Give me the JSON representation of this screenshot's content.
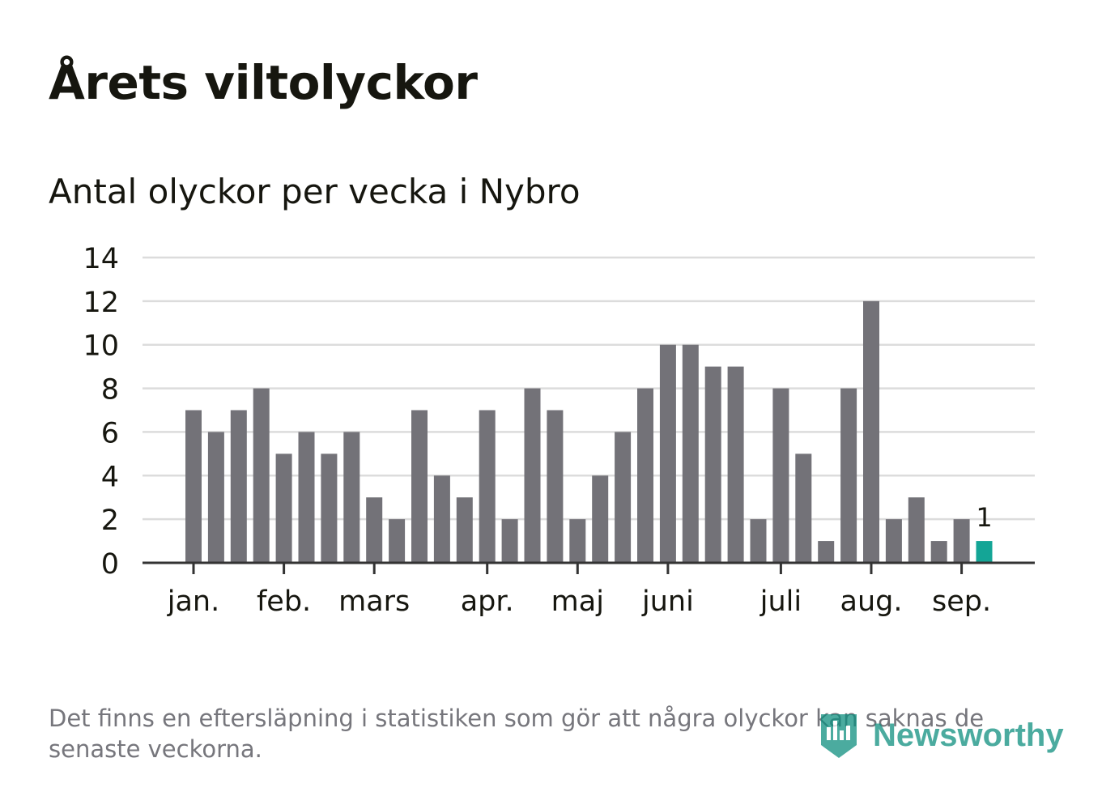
{
  "title": "Årets viltolyckor",
  "subtitle": "Antal olyckor per vecka i Nybro",
  "footnote": "Det finns en eftersläpning i statistiken som gör att några olyckor kan saknas de senaste veckorna.",
  "logo": {
    "icon": "newsworthy-logo-icon",
    "text": "Newsworthy"
  },
  "colors": {
    "bar": "#737278",
    "highlight": "#14a596",
    "grid": "#dcdcdc",
    "axis": "#333333",
    "text": "#16160f",
    "footnote": "#76767c"
  },
  "chart_data": {
    "type": "bar",
    "title": "Antal olyckor per vecka i Nybro",
    "xlabel": "",
    "ylabel": "",
    "ylim": [
      0,
      14
    ],
    "yticks": [
      0,
      2,
      4,
      6,
      8,
      10,
      12,
      14
    ],
    "grid": true,
    "values": [
      7,
      6,
      7,
      8,
      5,
      6,
      5,
      6,
      3,
      2,
      7,
      4,
      3,
      7,
      2,
      8,
      7,
      2,
      4,
      6,
      8,
      10,
      10,
      9,
      9,
      2,
      8,
      5,
      1,
      8,
      12,
      2,
      3,
      1,
      2,
      1
    ],
    "highlight_index": 35,
    "highlight_label": "1",
    "month_labels": [
      {
        "label": "jan.",
        "week": 1
      },
      {
        "label": "feb.",
        "week": 5
      },
      {
        "label": "mars",
        "week": 9
      },
      {
        "label": "apr.",
        "week": 14
      },
      {
        "label": "maj",
        "week": 18
      },
      {
        "label": "juni",
        "week": 22
      },
      {
        "label": "juli",
        "week": 27
      },
      {
        "label": "aug.",
        "week": 31
      },
      {
        "label": "sep.",
        "week": 35
      }
    ]
  }
}
